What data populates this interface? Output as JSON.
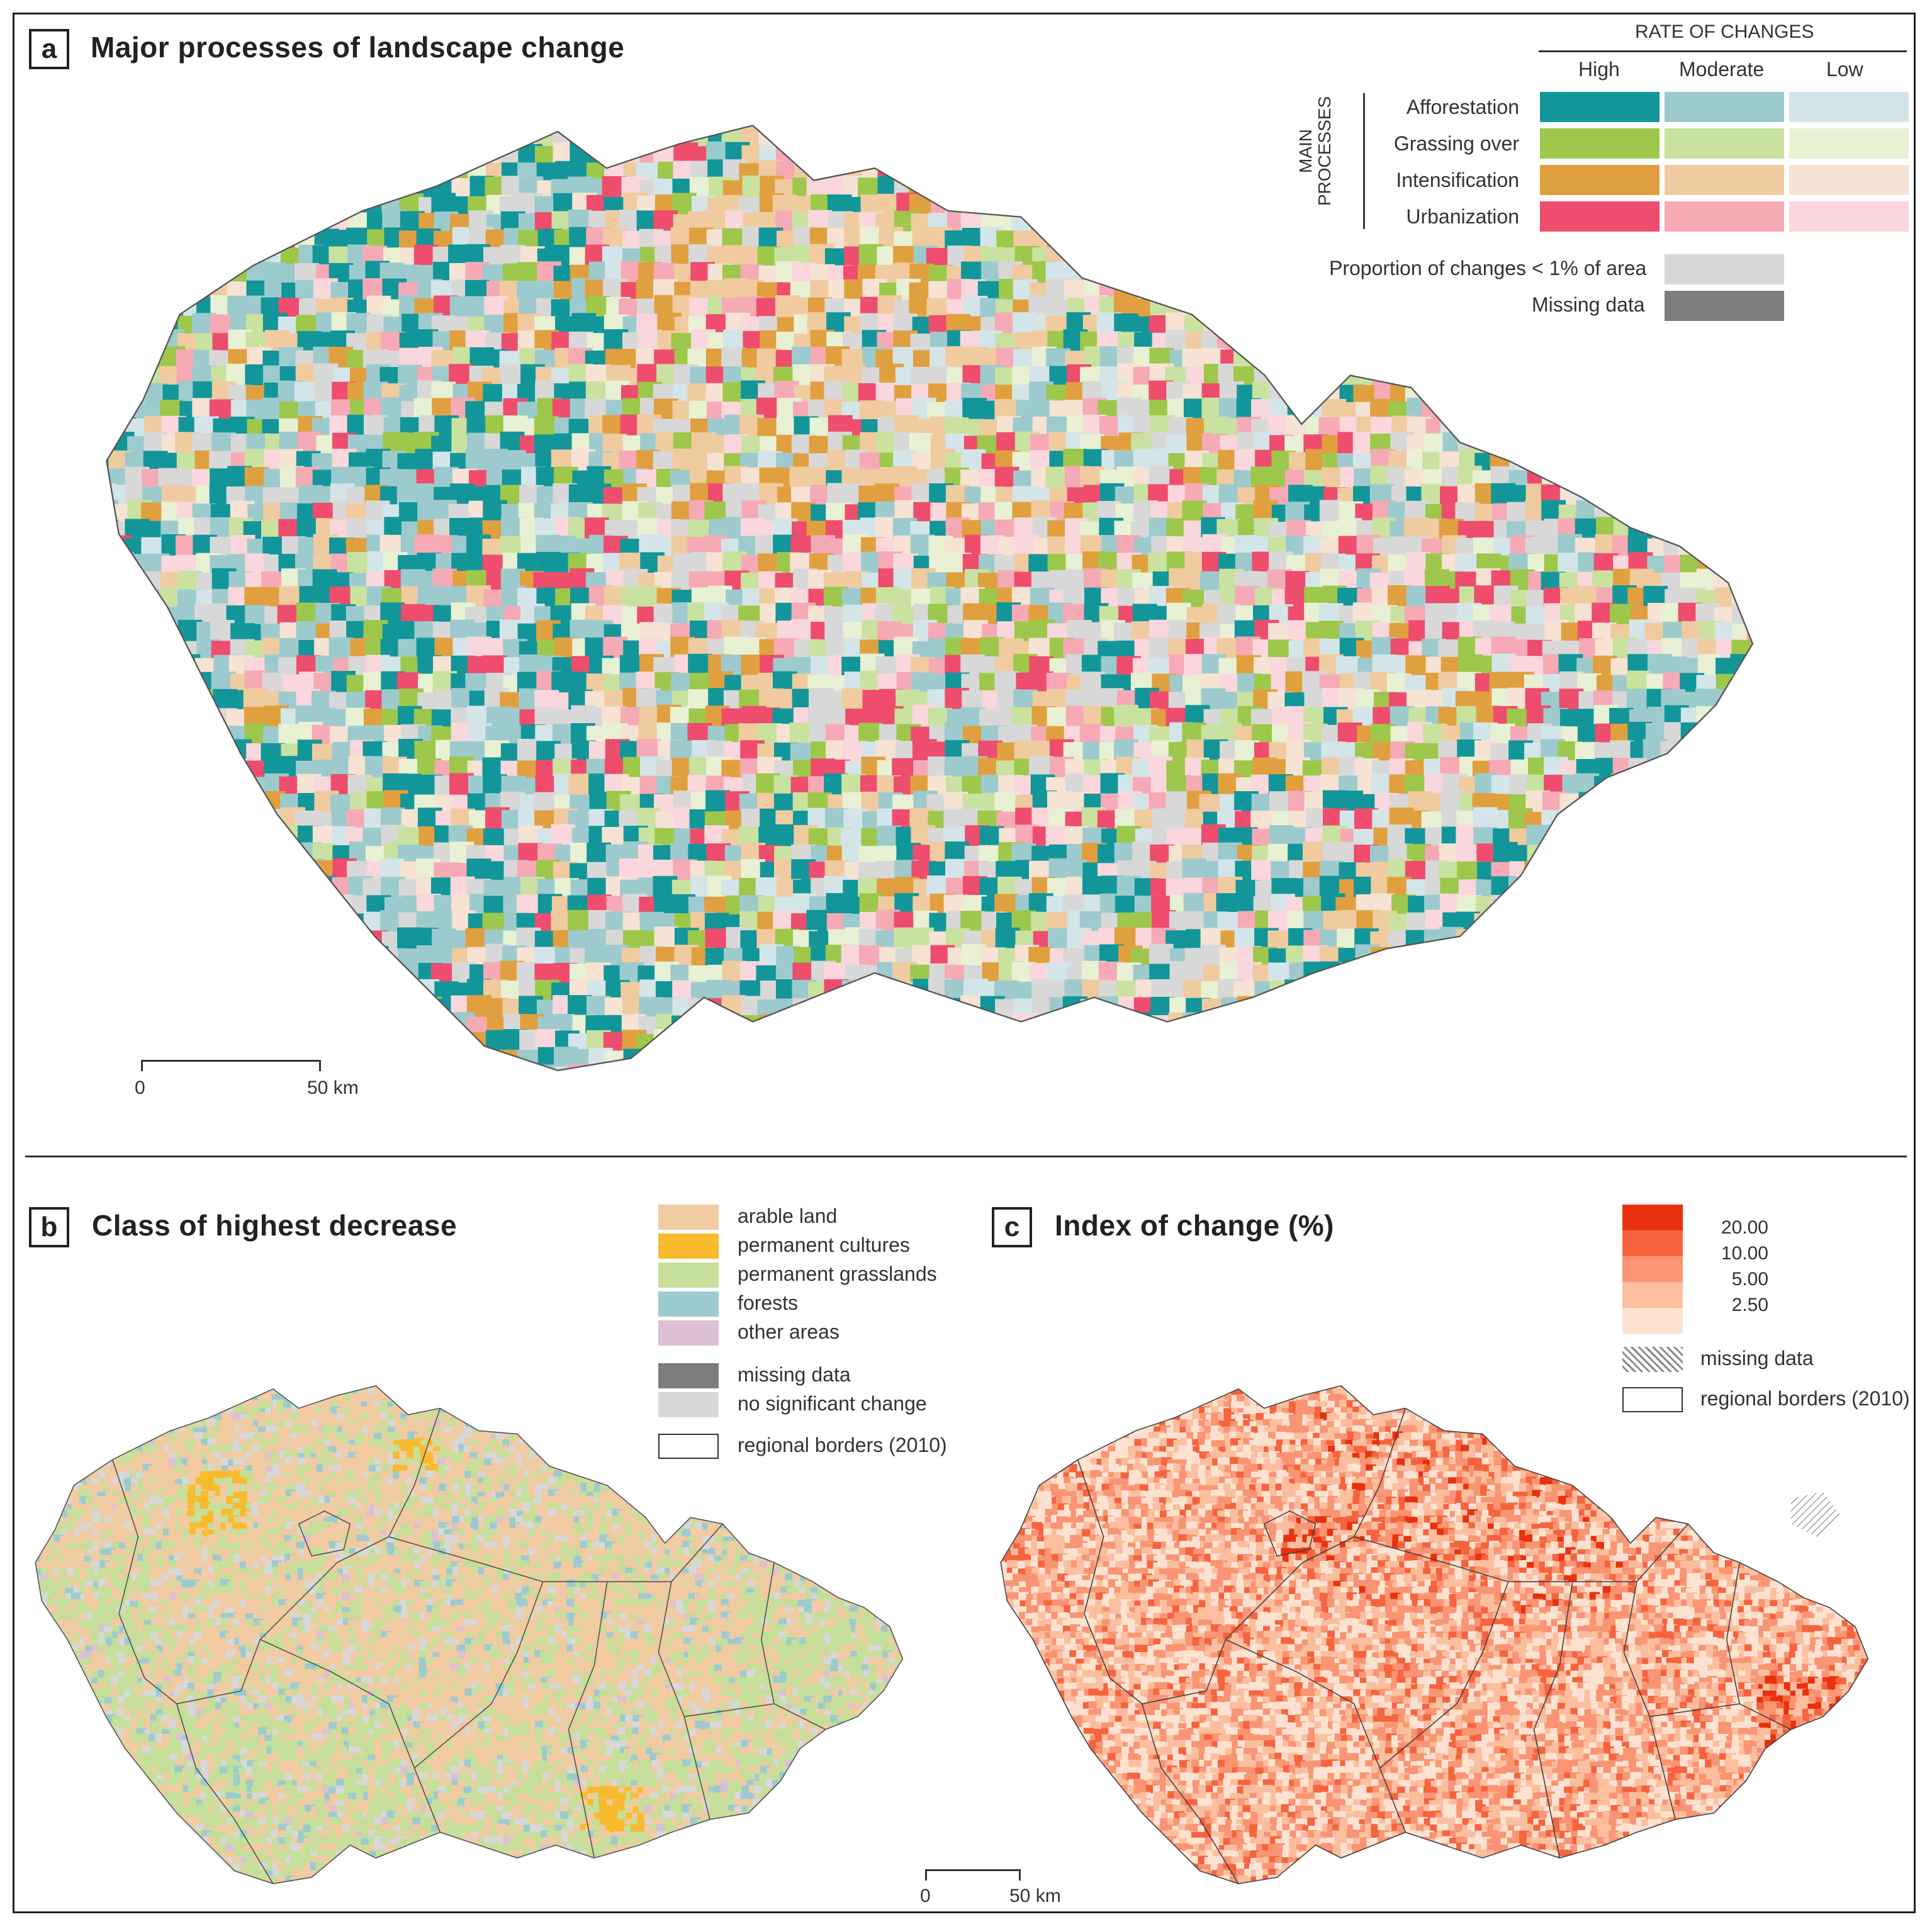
{
  "panel_a": {
    "letter": "a",
    "title": "Major processes of landscape change",
    "legend": {
      "rate_header": "RATE OF CHANGES",
      "rate_levels": [
        "High",
        "Moderate",
        "Low"
      ],
      "axis_label_line1": "MAIN",
      "axis_label_line2": "PROCESSES",
      "processes": [
        {
          "name": "Afforestation",
          "colors": [
            "#13969a",
            "#9dcbcd",
            "#d4e5e9"
          ]
        },
        {
          "name": "Grassing over",
          "colors": [
            "#9dc84b",
            "#c9e29f",
            "#e8f1d3"
          ]
        },
        {
          "name": "Intensification",
          "colors": [
            "#e1a03f",
            "#f0cba0",
            "#f6e3d3"
          ]
        },
        {
          "name": "Urbanization",
          "colors": [
            "#ee4d6d",
            "#f6aab5",
            "#fad7dc"
          ]
        }
      ],
      "small_change_label": "Proportion of changes < 1% of area",
      "small_change_color": "#d8d8d8",
      "missing_label": "Missing data",
      "missing_color": "#7d7d7d"
    },
    "scale": {
      "zero": "0",
      "distance": "50 km"
    }
  },
  "panel_b": {
    "letter": "b",
    "title": "Class of highest decrease",
    "legend": [
      {
        "label": "arable land",
        "color": "#f1cba2"
      },
      {
        "label": "permanent cultures",
        "color": "#f8bb2e"
      },
      {
        "label": "permanent grasslands",
        "color": "#c6df9a"
      },
      {
        "label": "forests",
        "color": "#9ccbcf"
      },
      {
        "label": "other areas",
        "color": "#dcc0d4"
      },
      {
        "label": "missing data",
        "color": "#7d7d7d"
      },
      {
        "label": "no significant change",
        "color": "#d8d8d8"
      },
      {
        "label": "regional borders (2010)",
        "color": "#ffffff"
      }
    ]
  },
  "panel_c": {
    "letter": "c",
    "title": "Index of change (%)",
    "legend": {
      "classes": [
        {
          "color": "#e8310f"
        },
        {
          "color": "#f5643f"
        },
        {
          "color": "#f99574"
        },
        {
          "color": "#fbbf9f"
        },
        {
          "color": "#fde2d1"
        }
      ],
      "break_labels": [
        "20.00",
        "10.00",
        "5.00",
        "2.50"
      ],
      "missing_label": "missing data",
      "borders_label": "regional borders (2010)"
    },
    "scale": {
      "zero": "0",
      "distance": "50 km"
    }
  }
}
